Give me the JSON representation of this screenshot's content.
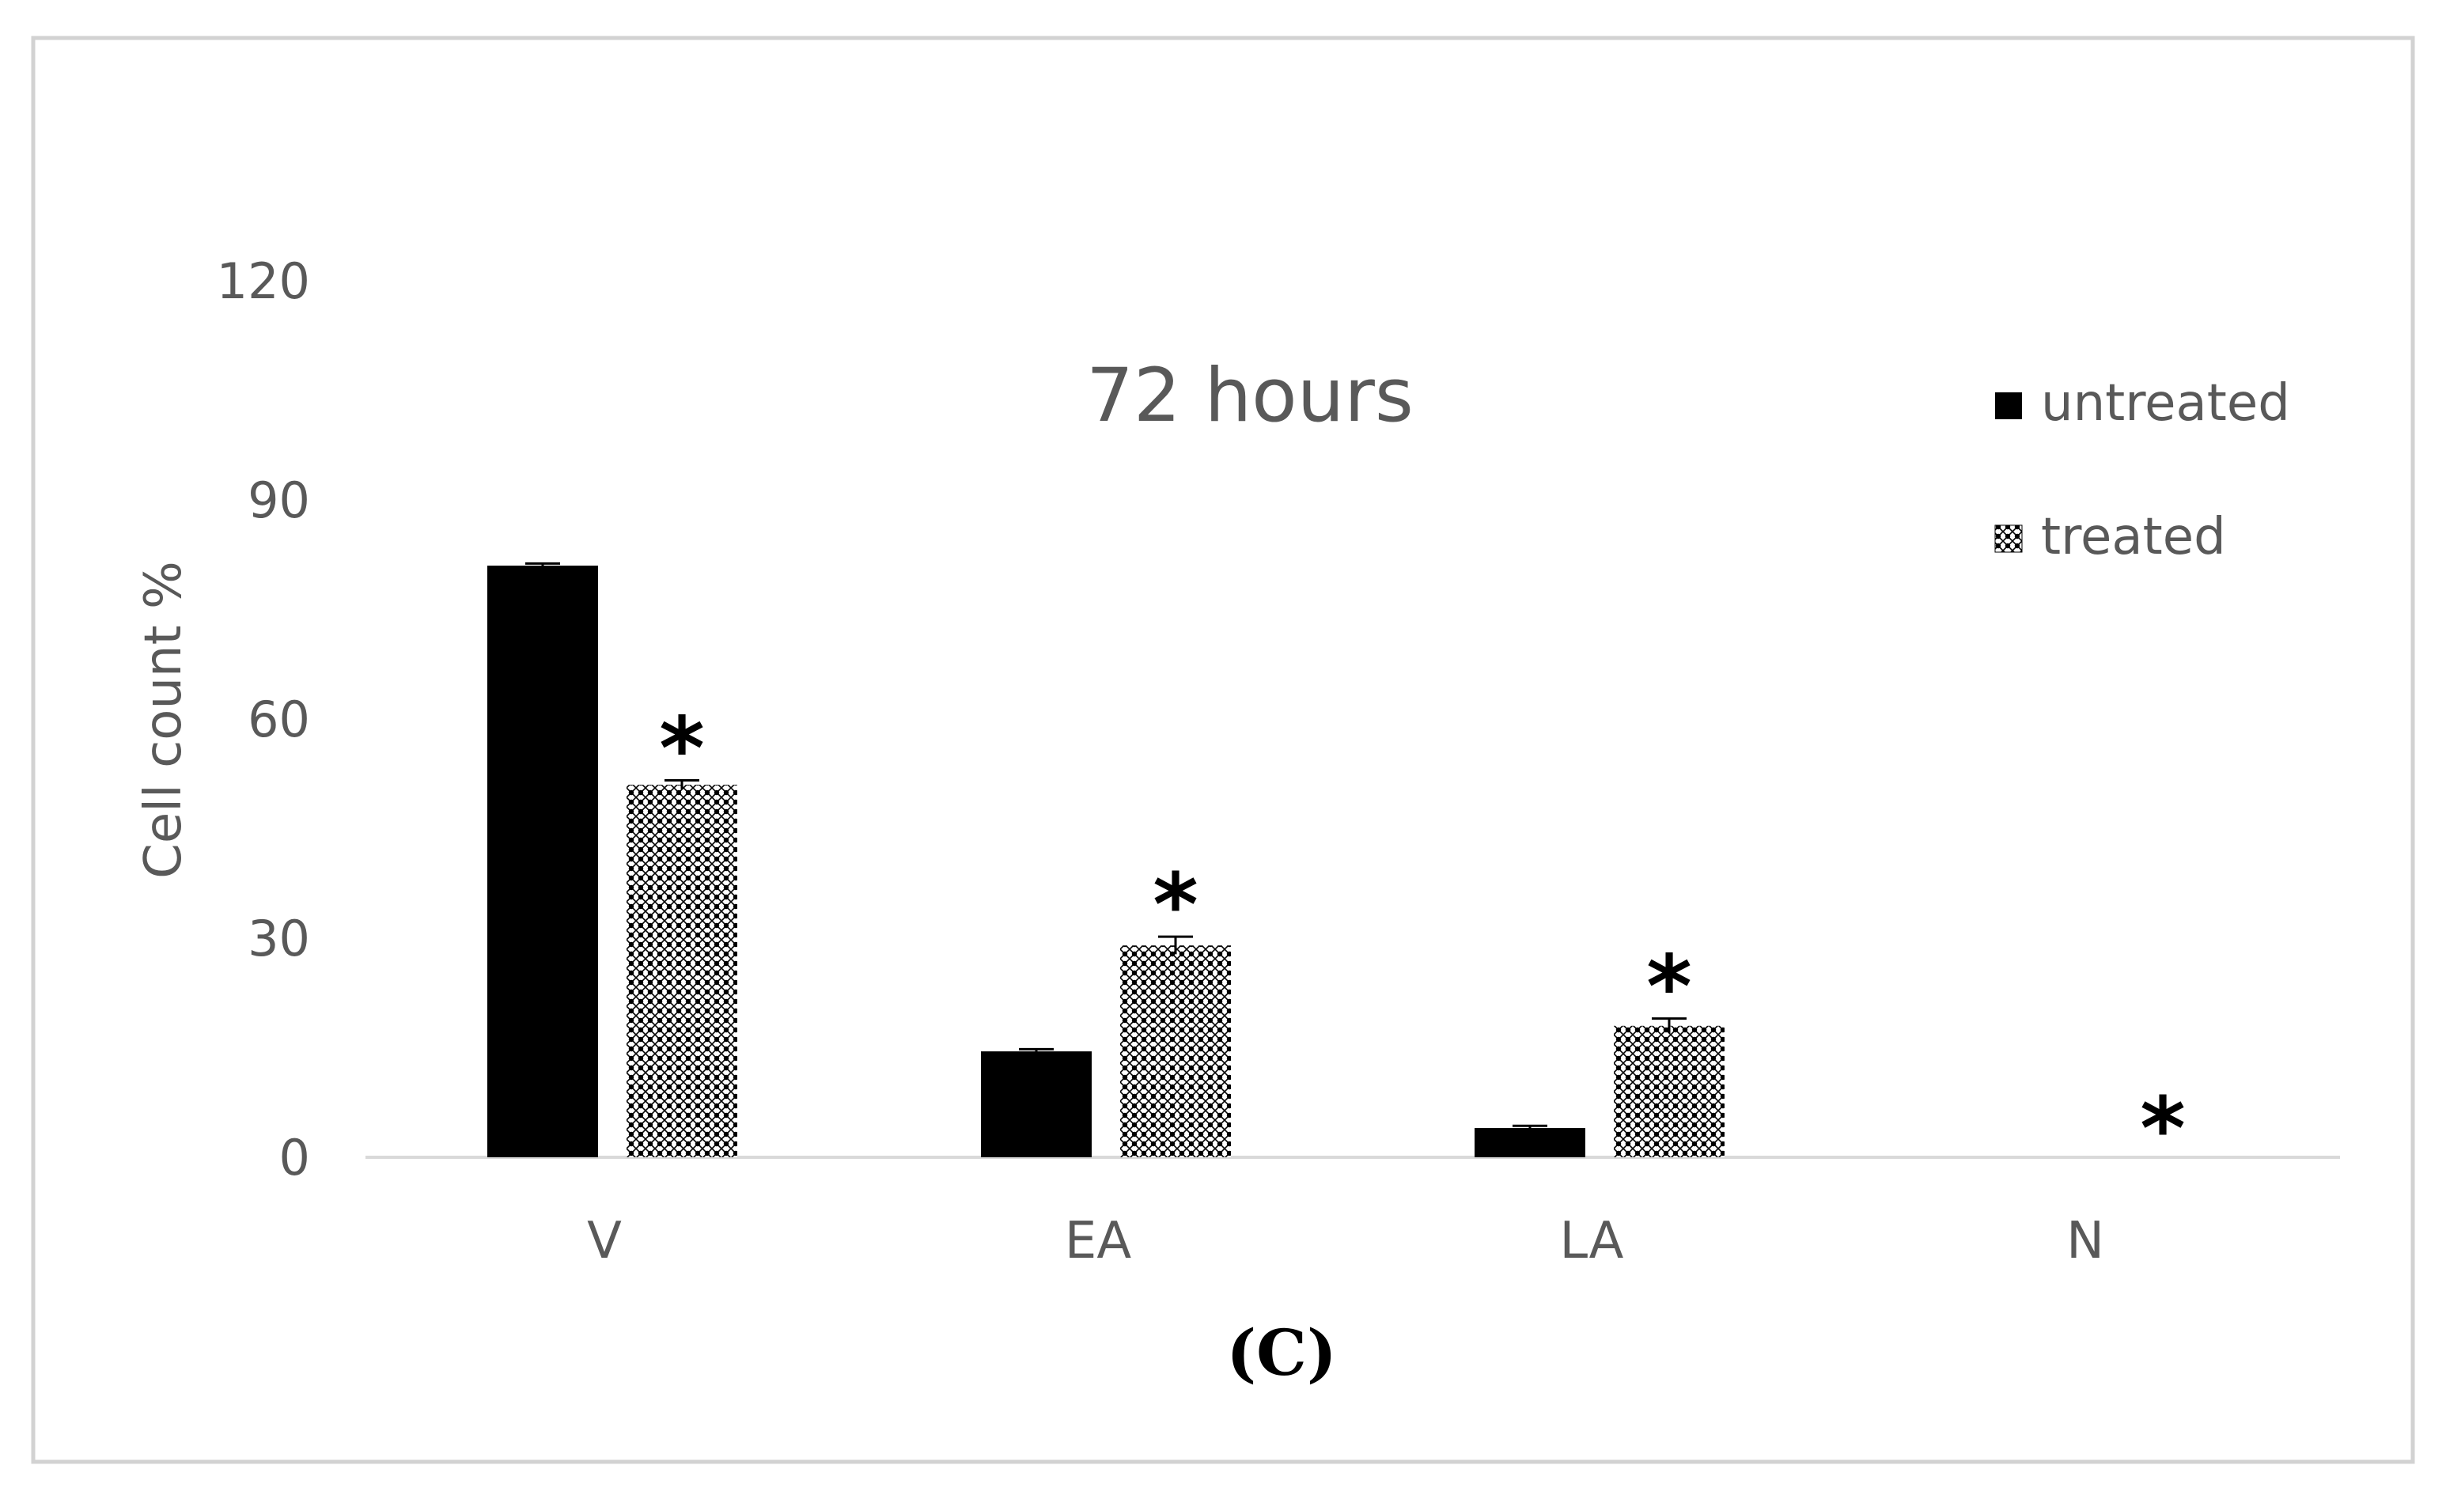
{
  "chart_data": {
    "type": "bar",
    "title": "72 hours",
    "caption": "(C)",
    "xlabel": "",
    "ylabel": "Cell count %",
    "ylim": [
      0,
      120
    ],
    "yticks": [
      "0",
      "30",
      "60",
      "90",
      "120"
    ],
    "grid": false,
    "legend_position": "top-right",
    "categories": [
      "V",
      "EA",
      "LA",
      "N"
    ],
    "series": [
      {
        "name": "untreated",
        "values": [
          81,
          14.5,
          4,
          0
        ],
        "errors": [
          0.3,
          0.3,
          0.3,
          0
        ],
        "color": "#000000",
        "pattern": "solid"
      },
      {
        "name": "treated",
        "values": [
          51,
          29,
          18,
          0
        ],
        "errors": [
          0.6,
          1.2,
          1.0,
          0
        ],
        "color": "#000000",
        "pattern": "checker"
      }
    ],
    "annotations": [
      "*",
      "*",
      "*",
      "*"
    ]
  }
}
